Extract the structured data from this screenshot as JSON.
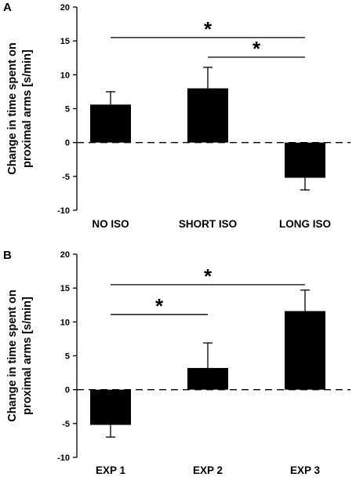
{
  "chart_data": [
    {
      "panel": "A",
      "type": "bar",
      "categories": [
        "NO ISO",
        "SHORT ISO",
        "LONG ISO"
      ],
      "values": [
        5.6,
        8.0,
        -5.2
      ],
      "errors": [
        1.9,
        3.1,
        1.8
      ],
      "ylabel_lines": [
        "Change in time spent on",
        "proximal arms [s/min]"
      ],
      "ylim": [
        -10,
        20
      ],
      "yticks": [
        -10,
        -5,
        0,
        5,
        10,
        15,
        20
      ],
      "zero_line": "dashed",
      "bar_color": "#000000",
      "significance": [
        {
          "from": 0,
          "to": 2,
          "y": 15.5,
          "label": "*"
        },
        {
          "from": 1,
          "to": 2,
          "y": 12.6,
          "label": "*"
        }
      ]
    },
    {
      "panel": "B",
      "type": "bar",
      "categories": [
        "EXP 1",
        "EXP 2",
        "EXP 3"
      ],
      "values": [
        -5.2,
        3.2,
        11.6
      ],
      "errors": [
        1.8,
        3.7,
        3.1
      ],
      "ylabel_lines": [
        "Change in time spent on",
        "proximal arms [s/min]"
      ],
      "ylim": [
        -10,
        20
      ],
      "yticks": [
        -10,
        -5,
        0,
        5,
        10,
        15,
        20
      ],
      "zero_line": "dashed",
      "bar_color": "#000000",
      "significance": [
        {
          "from": 0,
          "to": 2,
          "y": 15.5,
          "label": "*"
        },
        {
          "from": 0,
          "to": 1,
          "y": 11.1,
          "label": "*"
        }
      ]
    }
  ]
}
